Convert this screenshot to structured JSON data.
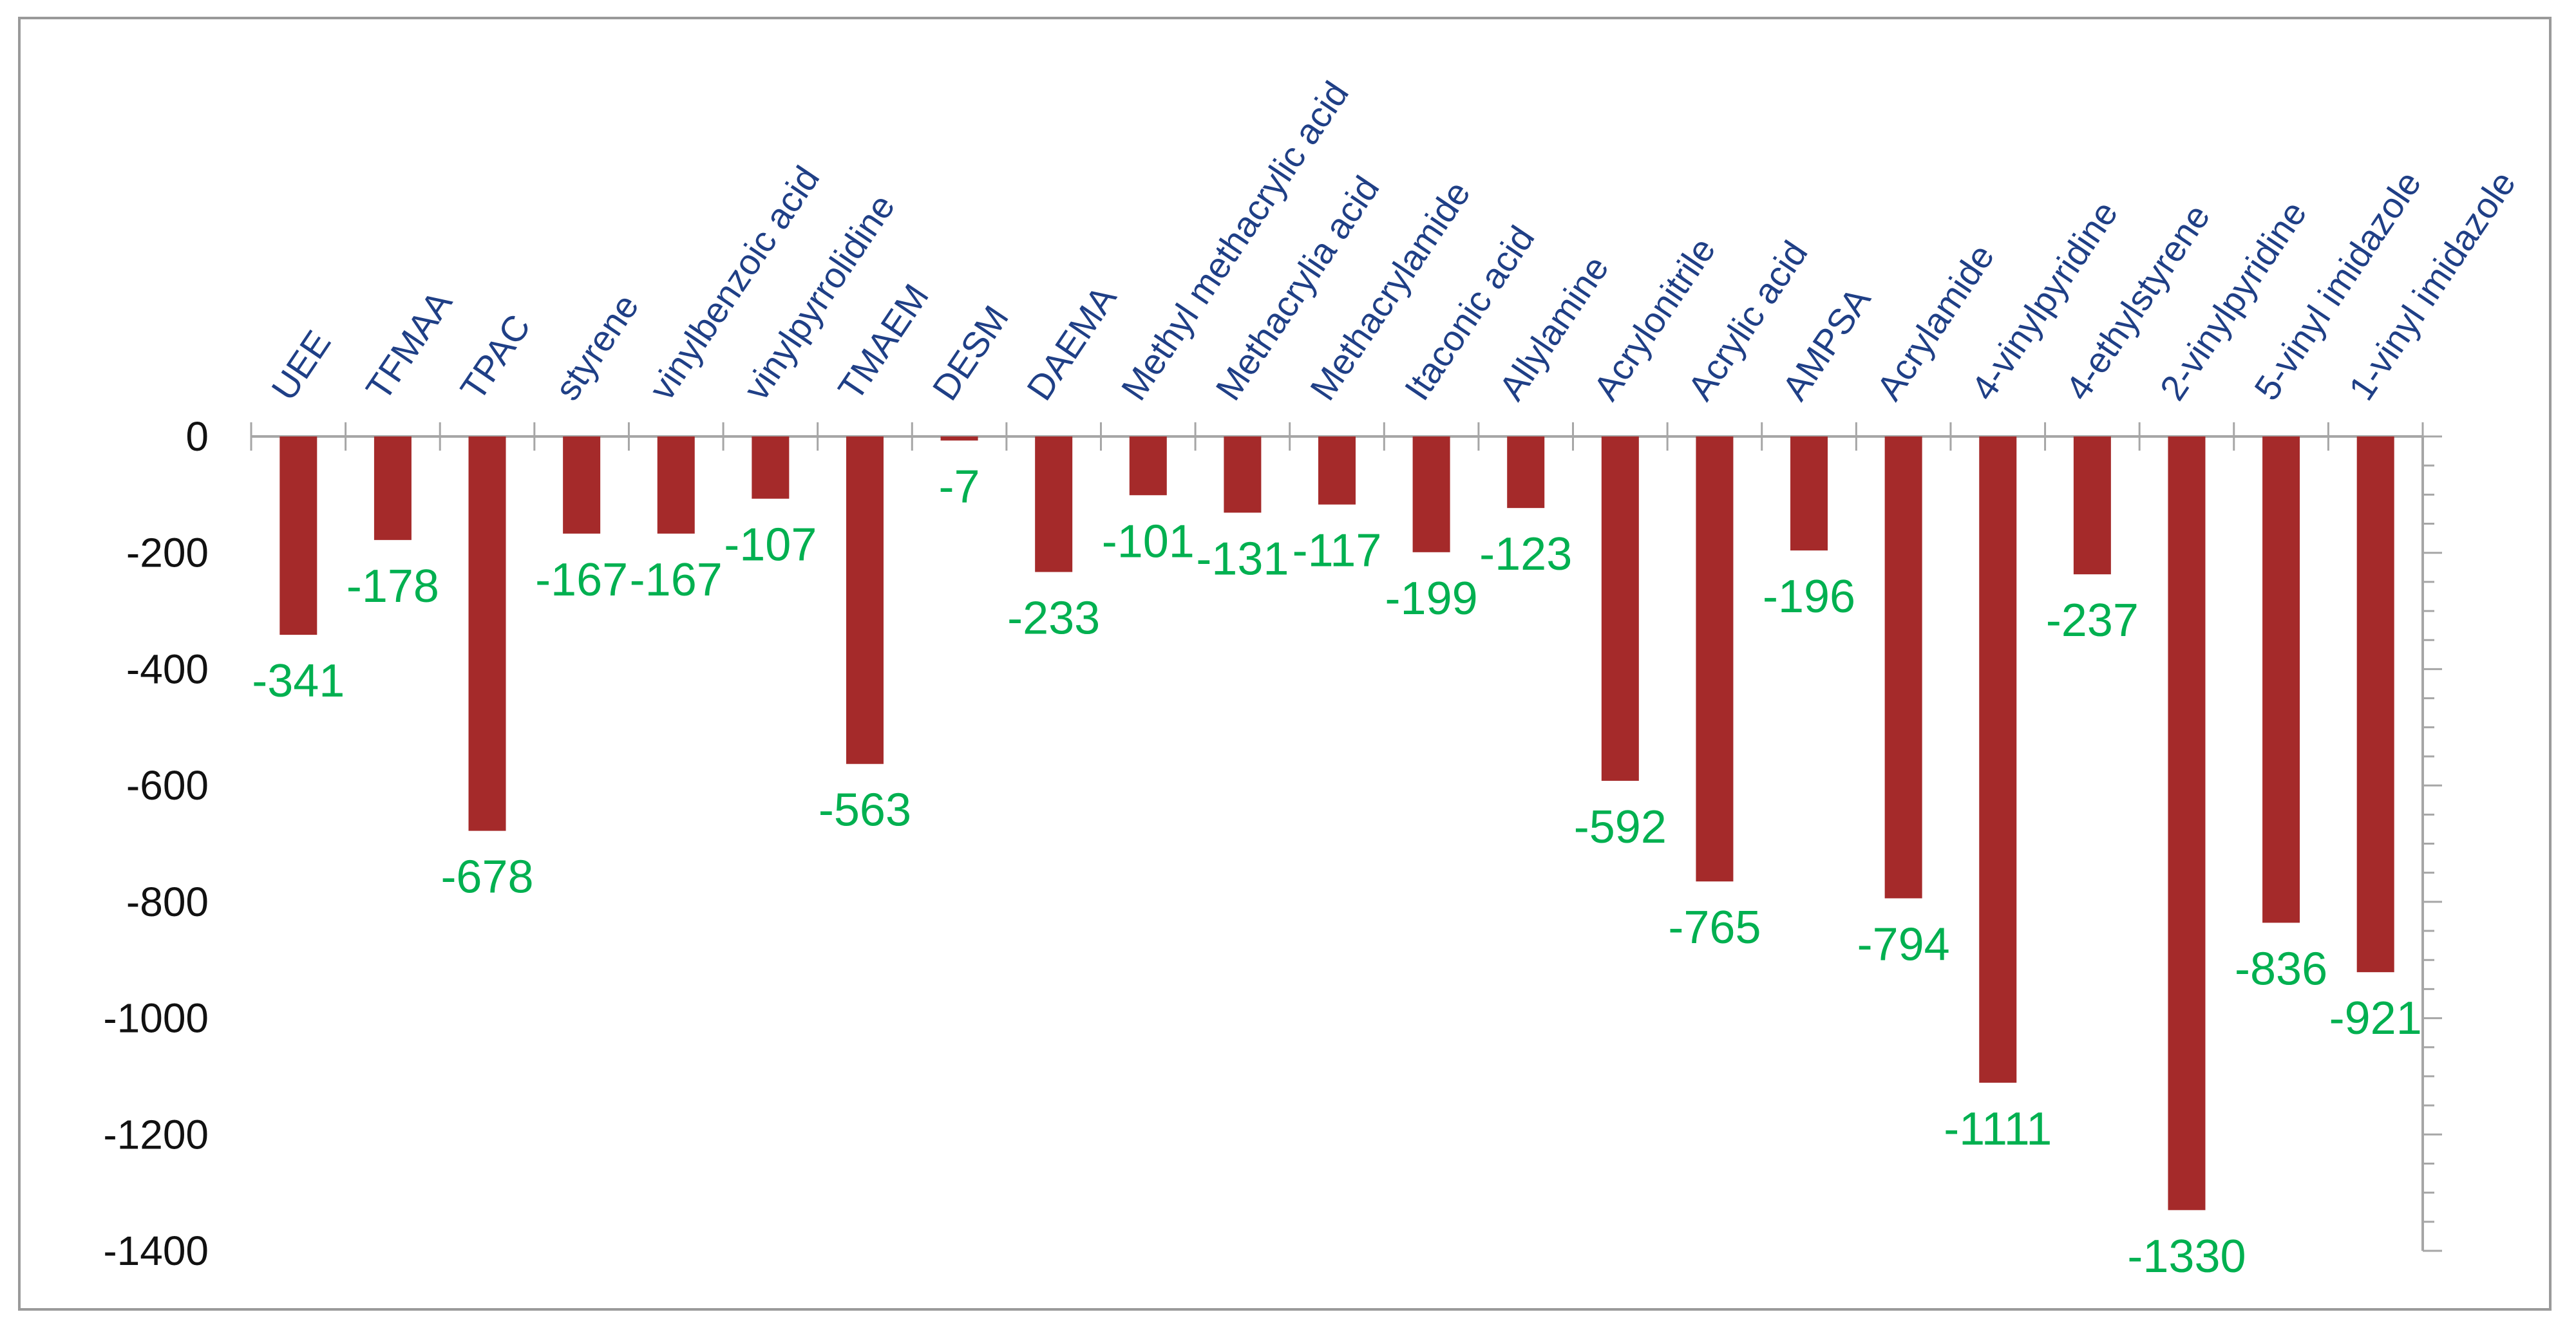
{
  "chart_data": {
    "type": "bar",
    "title": "",
    "xlabel": "",
    "ylabel": "",
    "ylim": [
      -1400,
      0
    ],
    "yticks": [
      0,
      -200,
      -400,
      -600,
      -800,
      -1000,
      -1200,
      -1400
    ],
    "ytick_labels": [
      "0",
      "-200",
      "-400",
      "-600",
      "-800",
      "-1000",
      "-1200",
      "-1400"
    ],
    "categories": [
      "UEE",
      "TFMAA",
      "TPAC",
      "styrene",
      "vinylbenzoic acid",
      "vinylpyrrolidine",
      "TMAEM",
      "DESM",
      "DAEMA",
      "Methyl methacrylic acid",
      "Methacrylia acid",
      "Methacrylamide",
      "Itaconic acid",
      "Allylamine",
      "Acrylonitrile",
      "Acrylic acid",
      "AMPSA",
      "Acrylamide",
      "4-vinylpyridine",
      "4-ethylstyrene",
      "2-vinylpyridine",
      "5-vinyl imidazole",
      "1-vinyl imidazole"
    ],
    "values": [
      -341,
      -178,
      -678,
      -167,
      -167,
      -107,
      -563,
      -7,
      -233,
      -101,
      -131,
      -117,
      -199,
      -123,
      -592,
      -765,
      -196,
      -794,
      -1111,
      -237,
      -1330,
      -836,
      -921
    ],
    "data_labels": [
      "-341",
      "-178",
      "-678",
      "-167",
      "-167",
      "-107",
      "-563",
      "-7",
      "-233",
      "-101",
      "-131",
      "-117",
      "-199",
      "-123",
      "-592",
      "-765",
      "-196",
      "-794",
      "-1111",
      "-237",
      "-1330",
      "-836",
      "-921"
    ],
    "grid": false,
    "legend": "none",
    "colors": {
      "bar": "#a52a2a",
      "data_label": "#00b050",
      "category_label": "#1f3f86",
      "axis": "#a6a6a6",
      "tick_label": "#111111",
      "frame": "#9a9a9a"
    }
  }
}
